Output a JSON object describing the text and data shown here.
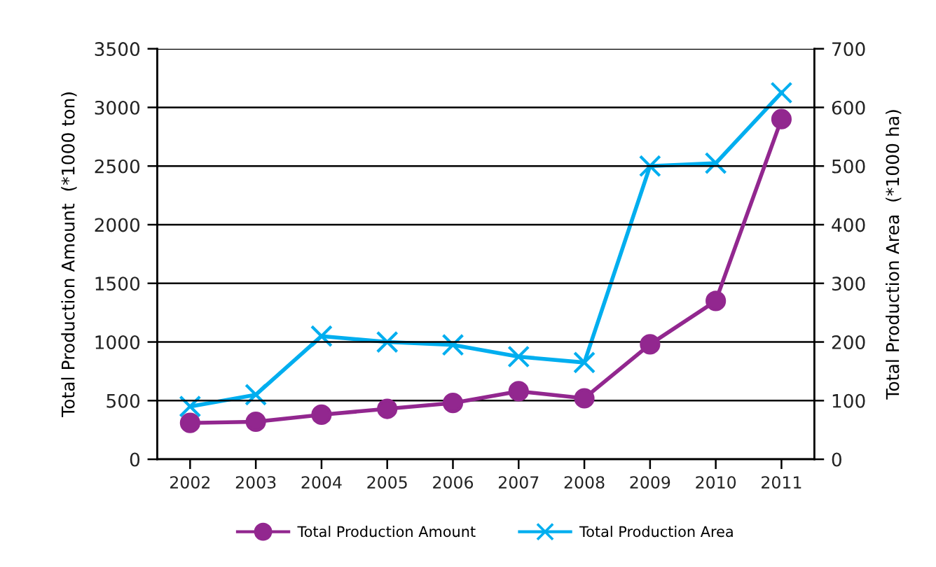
{
  "chart_data": {
    "type": "line",
    "categories": [
      "2002",
      "2003",
      "2004",
      "2005",
      "2006",
      "2007",
      "2008",
      "2009",
      "2010",
      "2011"
    ],
    "ylabel": "Total Production Amount  (*1000 ton)",
    "y2label": "Total Production Area  (*1000 ha)",
    "series": [
      {
        "name": "Total Production Amount",
        "color": "#92278f",
        "marker": "circle",
        "values": [
          310,
          320,
          380,
          430,
          480,
          580,
          520,
          980,
          1350,
          2900
        ]
      },
      {
        "name": "Total Production Area",
        "color": "#00aeef",
        "marker": "cross",
        "axis": "y2",
        "values": [
          90,
          110,
          210,
          200,
          195,
          175,
          165,
          500,
          505,
          625
        ]
      }
    ],
    "ylim": [
      0,
      3500
    ],
    "yticks": [
      0,
      500,
      1000,
      1500,
      2000,
      2500,
      3000,
      3500
    ],
    "y2lim": [
      0,
      700
    ],
    "y2ticks": [
      0,
      100,
      200,
      300,
      400,
      500,
      600,
      700
    ],
    "grid": "y",
    "legend": "bottom",
    "line_style": "solid"
  }
}
